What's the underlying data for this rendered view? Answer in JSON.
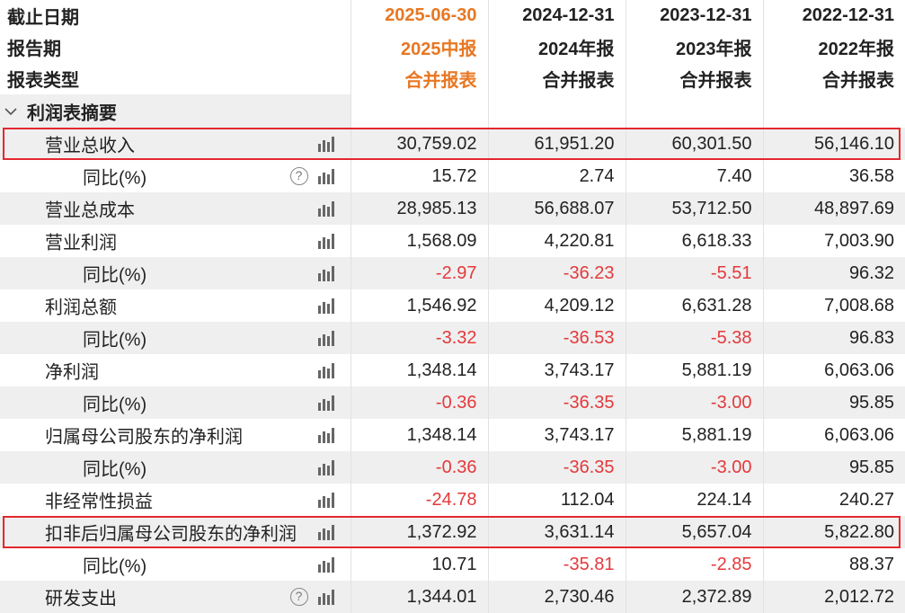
{
  "header": {
    "rows": [
      {
        "label": "截止日期",
        "cells": [
          "2025-06-30",
          "2024-12-31",
          "2023-12-31",
          "2022-12-31"
        ]
      },
      {
        "label": "报告期",
        "cells": [
          "2025中报",
          "2024年报",
          "2023年报",
          "2022年报"
        ]
      },
      {
        "label": "报表类型",
        "cells": [
          "合并报表",
          "合并报表",
          "合并报表",
          "合并报表"
        ]
      }
    ]
  },
  "section": {
    "label": "利润表摘要",
    "icon": "chevron-down-icon"
  },
  "rows": [
    {
      "label": "营业总收入",
      "level": 1,
      "help": false,
      "values": [
        "30,759.02",
        "61,951.20",
        "60,301.50",
        "56,146.10"
      ],
      "neg": [
        false,
        false,
        false,
        false
      ],
      "highlighted": true
    },
    {
      "label": "同比(%)",
      "level": 2,
      "help": true,
      "values": [
        "15.72",
        "2.74",
        "7.40",
        "36.58"
      ],
      "neg": [
        false,
        false,
        false,
        false
      ]
    },
    {
      "label": "营业总成本",
      "level": 1,
      "help": false,
      "values": [
        "28,985.13",
        "56,688.07",
        "53,712.50",
        "48,897.69"
      ],
      "neg": [
        false,
        false,
        false,
        false
      ]
    },
    {
      "label": "营业利润",
      "level": 1,
      "help": false,
      "values": [
        "1,568.09",
        "4,220.81",
        "6,618.33",
        "7,003.90"
      ],
      "neg": [
        false,
        false,
        false,
        false
      ]
    },
    {
      "label": "同比(%)",
      "level": 2,
      "help": false,
      "values": [
        "-2.97",
        "-36.23",
        "-5.51",
        "96.32"
      ],
      "neg": [
        true,
        true,
        true,
        false
      ]
    },
    {
      "label": "利润总额",
      "level": 1,
      "help": false,
      "values": [
        "1,546.92",
        "4,209.12",
        "6,631.28",
        "7,008.68"
      ],
      "neg": [
        false,
        false,
        false,
        false
      ]
    },
    {
      "label": "同比(%)",
      "level": 2,
      "help": false,
      "values": [
        "-3.32",
        "-36.53",
        "-5.38",
        "96.83"
      ],
      "neg": [
        true,
        true,
        true,
        false
      ]
    },
    {
      "label": "净利润",
      "level": 1,
      "help": false,
      "values": [
        "1,348.14",
        "3,743.17",
        "5,881.19",
        "6,063.06"
      ],
      "neg": [
        false,
        false,
        false,
        false
      ]
    },
    {
      "label": "同比(%)",
      "level": 2,
      "help": false,
      "values": [
        "-0.36",
        "-36.35",
        "-3.00",
        "95.85"
      ],
      "neg": [
        true,
        true,
        true,
        false
      ]
    },
    {
      "label": "归属母公司股东的净利润",
      "level": 1,
      "help": false,
      "values": [
        "1,348.14",
        "3,743.17",
        "5,881.19",
        "6,063.06"
      ],
      "neg": [
        false,
        false,
        false,
        false
      ]
    },
    {
      "label": "同比(%)",
      "level": 2,
      "help": false,
      "values": [
        "-0.36",
        "-36.35",
        "-3.00",
        "95.85"
      ],
      "neg": [
        true,
        true,
        true,
        false
      ]
    },
    {
      "label": "非经常性损益",
      "level": 1,
      "help": false,
      "values": [
        "-24.78",
        "112.04",
        "224.14",
        "240.27"
      ],
      "neg": [
        true,
        false,
        false,
        false
      ]
    },
    {
      "label": "扣非后归属母公司股东的净利润",
      "level": 1,
      "help": false,
      "values": [
        "1,372.92",
        "3,631.14",
        "5,657.04",
        "5,822.80"
      ],
      "neg": [
        false,
        false,
        false,
        false
      ],
      "highlighted": true
    },
    {
      "label": "同比(%)",
      "level": 2,
      "help": false,
      "values": [
        "10.71",
        "-35.81",
        "-2.85",
        "88.37"
      ],
      "neg": [
        false,
        true,
        true,
        false
      ]
    },
    {
      "label": "研发支出",
      "level": 1,
      "help": true,
      "values": [
        "1,344.01",
        "2,730.46",
        "2,372.89",
        "2,012.72"
      ],
      "neg": [
        false,
        false,
        false,
        false
      ]
    }
  ],
  "colors": {
    "accent_current_period": "#e87722",
    "negative": "#e4393c",
    "highlight_box": "#e3282e",
    "row_alt_bg": "#efefef"
  },
  "icons": {
    "chart": "bar-chart-icon",
    "help": "question-circle-icon",
    "help_glyph": "?"
  }
}
